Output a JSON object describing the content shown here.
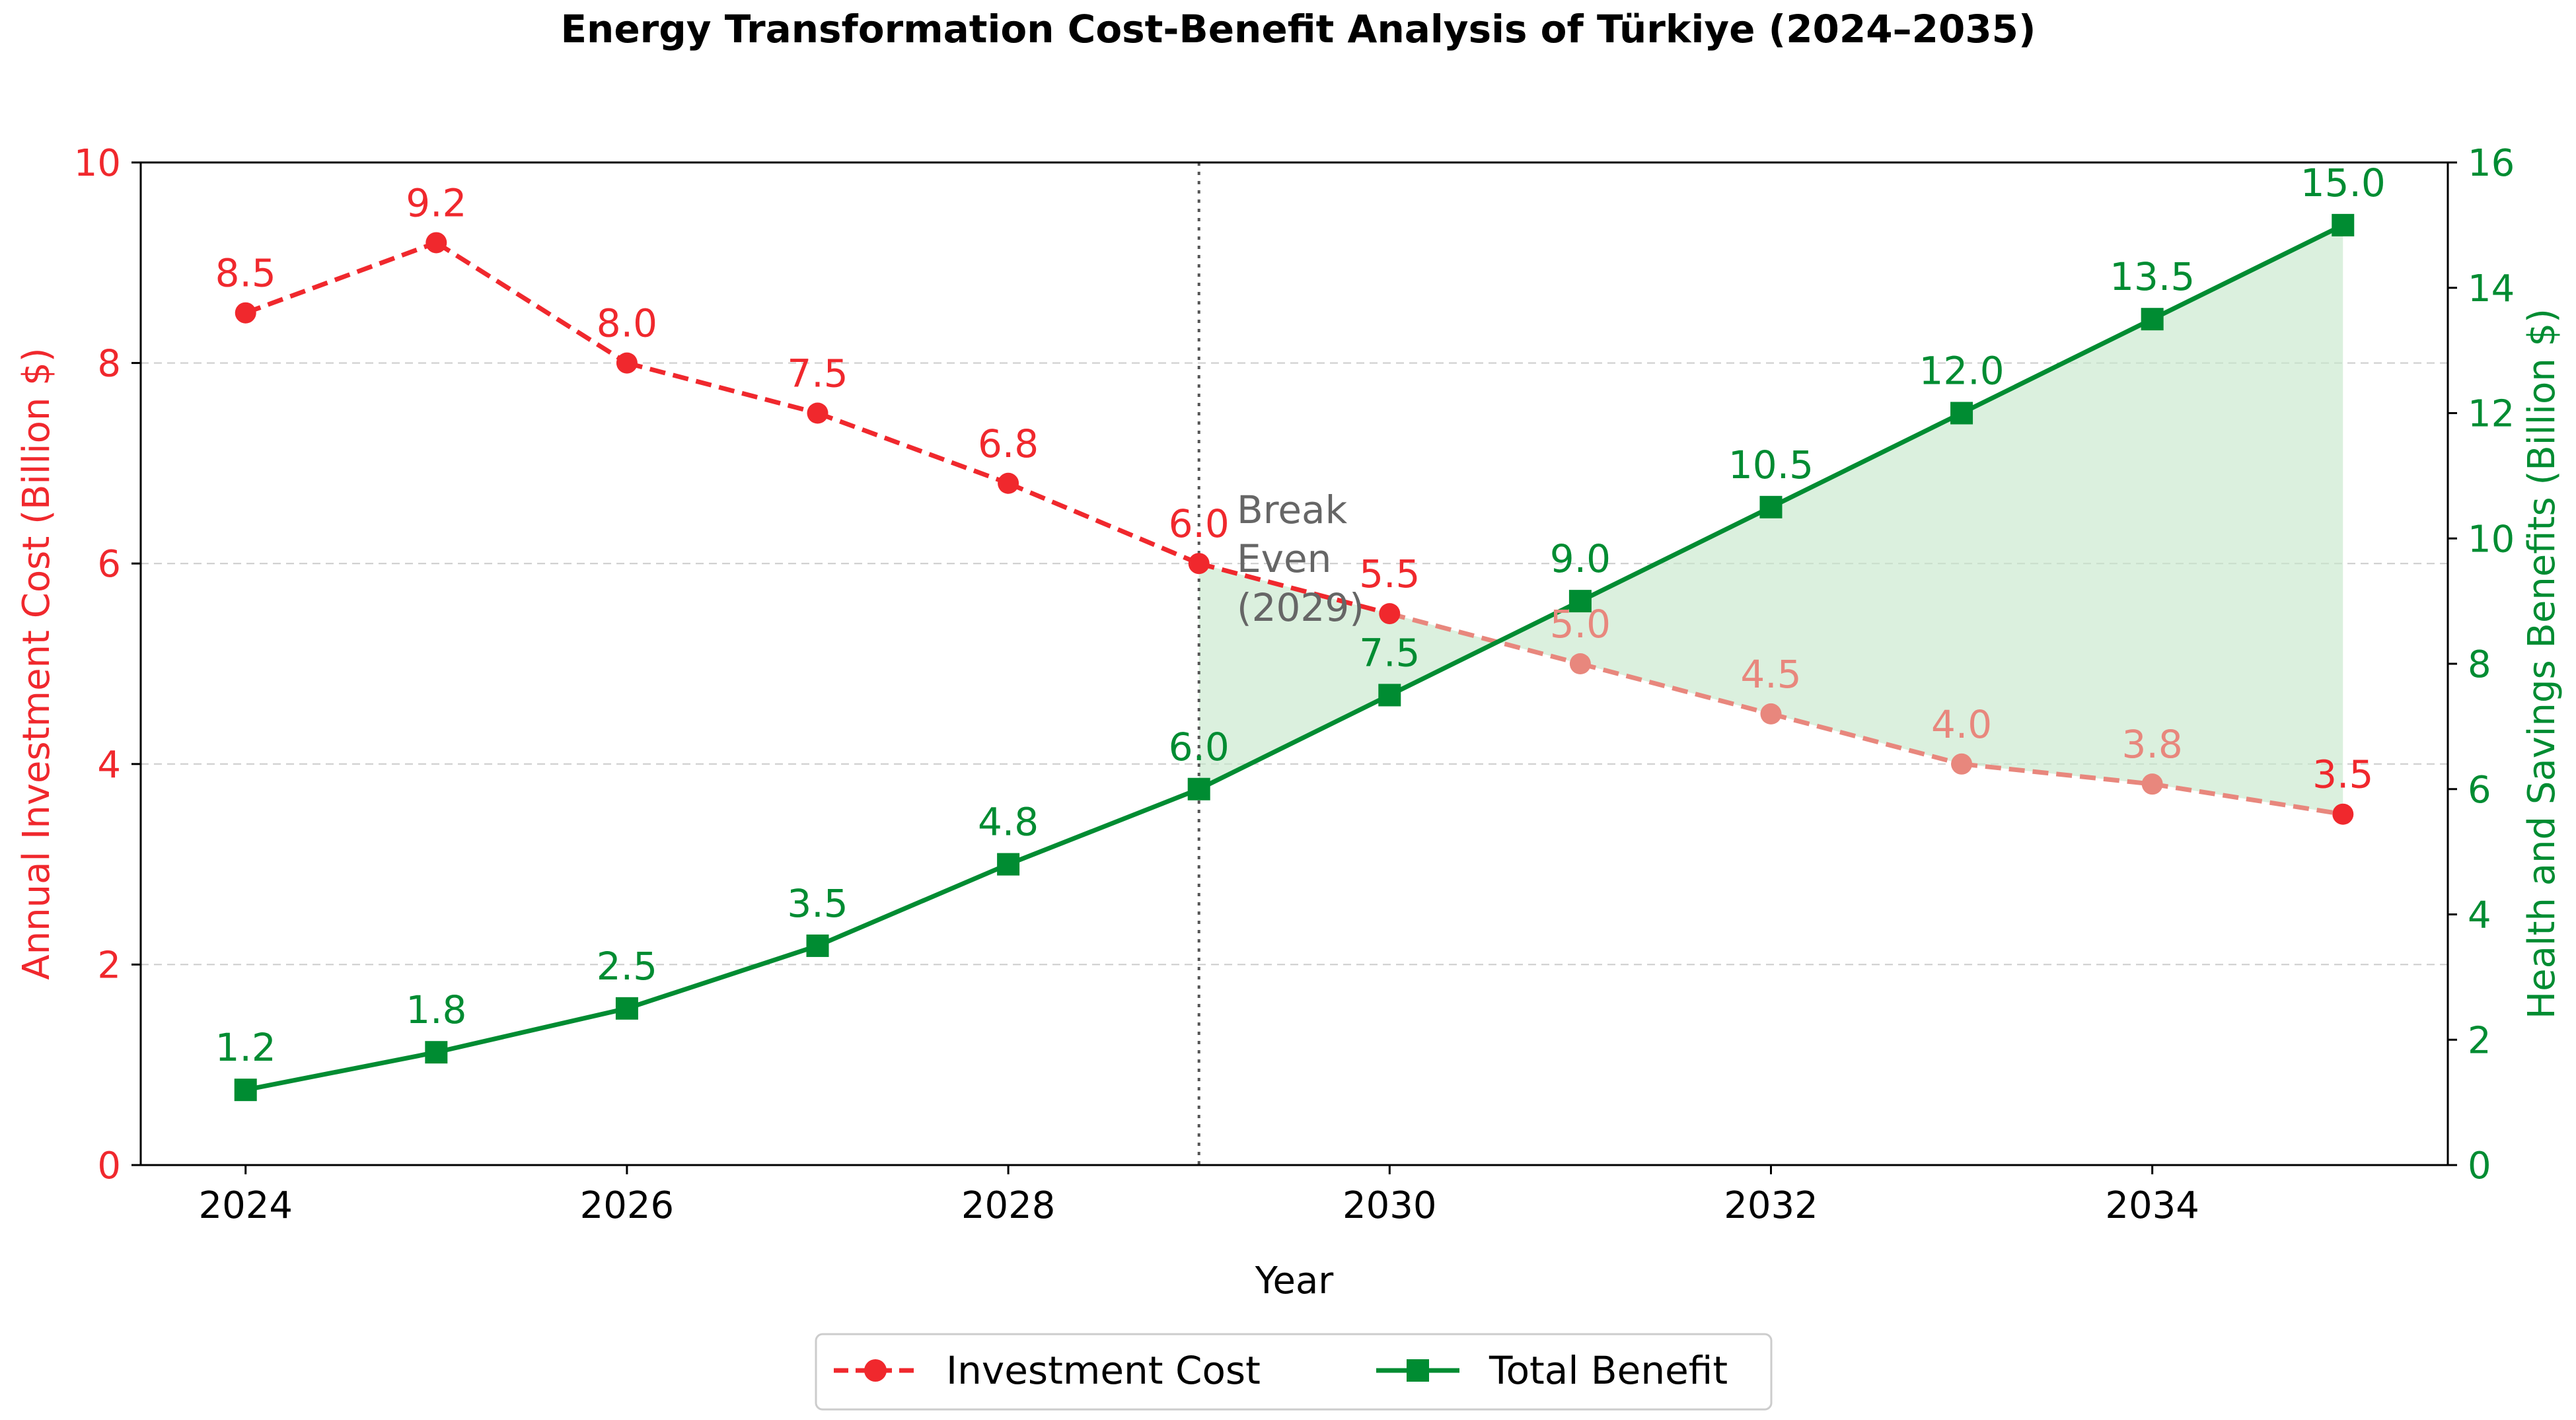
{
  "chart_data": {
    "type": "line",
    "title": "Energy Transformation Cost-Benefit Analysis of Türkiye (2024–2035)",
    "xlabel": "Year",
    "ylabel_left": "Annual Investment Cost (Billion $)",
    "ylabel_right": "Health and Savings Benefits (Billion $)",
    "x": [
      2024,
      2025,
      2026,
      2027,
      2028,
      2029,
      2030,
      2031,
      2032,
      2033,
      2034,
      2035
    ],
    "xticks": [
      "2024",
      "2026",
      "2028",
      "2030",
      "2032",
      "2034"
    ],
    "xlim": [
      2023.45,
      2035.55
    ],
    "ylim_left": [
      0,
      10
    ],
    "yticks_left": [
      "0",
      "2",
      "4",
      "6",
      "8",
      "10"
    ],
    "ylim_right": [
      0,
      16
    ],
    "yticks_right": [
      "0",
      "2",
      "4",
      "6",
      "8",
      "10",
      "12",
      "14",
      "16"
    ],
    "grid": "horizontal dashed",
    "series": [
      {
        "name": "Investment Cost",
        "axis": "left",
        "style": "dashed line with circle markers",
        "color": "#f0282d",
        "faded_color": "#e8877d",
        "values": [
          8.5,
          9.2,
          8.0,
          7.5,
          6.8,
          6.0,
          5.5,
          5.0,
          4.5,
          4.0,
          3.8,
          3.5
        ],
        "labels": [
          "8.5",
          "9.2",
          "8.0",
          "7.5",
          "6.8",
          "6.0",
          "5.5",
          "5.0",
          "4.5",
          "4.0",
          "3.8",
          "3.5"
        ]
      },
      {
        "name": "Total Benefit",
        "axis": "right",
        "style": "solid line with square markers",
        "color": "#008c32",
        "values": [
          1.2,
          1.8,
          2.5,
          3.5,
          4.8,
          6.0,
          7.5,
          9.0,
          10.5,
          12.0,
          13.5,
          15.0
        ],
        "labels": [
          "1.2",
          "1.8",
          "2.5",
          "3.5",
          "4.8",
          "6.0",
          "7.5",
          "9.0",
          "10.5",
          "12.0",
          "13.5",
          "15.0"
        ]
      }
    ],
    "shaded_region": {
      "description": "net benefit area between cost (converted) and benefit",
      "from_x": 2029,
      "to_x": 2035,
      "color": "#c8e8cc"
    },
    "annotation": {
      "vline_x": 2029,
      "lines": [
        "Break",
        "Even",
        "(2029)"
      ],
      "color": "#666666"
    },
    "legend": {
      "placement": "bottom-center",
      "entries": [
        "Investment Cost",
        "Total Benefit"
      ]
    }
  }
}
